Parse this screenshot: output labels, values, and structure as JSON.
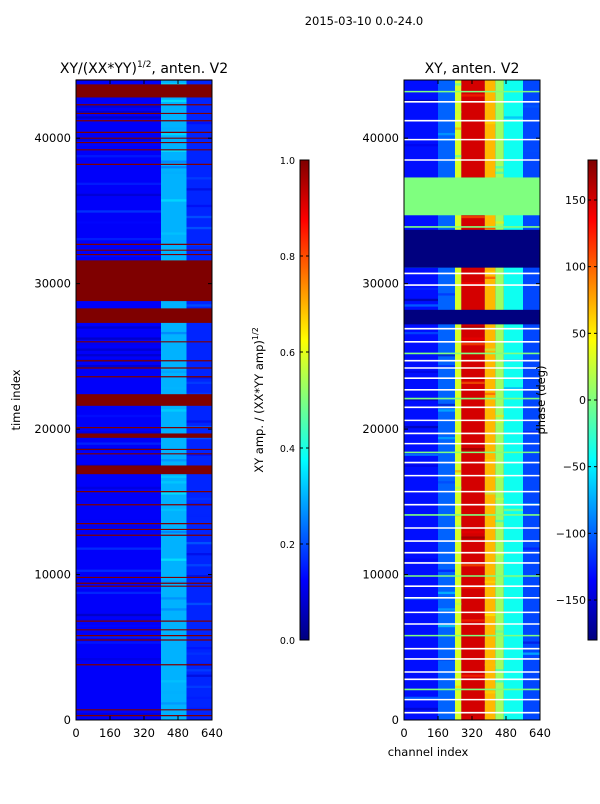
{
  "figure": {
    "suptitle": "2015-03-10 0.0-24.0"
  },
  "colors": {
    "jet": [
      "#00007f",
      "#0000ff",
      "#007fff",
      "#00ffff",
      "#7fff7f",
      "#ffff00",
      "#ff7f00",
      "#ff0000",
      "#7f0000"
    ],
    "saturated": "#7f0000",
    "gap_phase": "#7fff7f",
    "gap_line": "#ffffff"
  },
  "chart_data": [
    {
      "type": "heatmap",
      "id": "amp",
      "title": "XY/(XX*YY)",
      "title_sup": "1/2",
      "title_suffix": ", anten. V2",
      "xlabel": "",
      "ylabel": "time index",
      "xlim": [
        0,
        640
      ],
      "ylim": [
        0,
        44000
      ],
      "xticks": [
        0,
        160,
        320,
        480,
        640
      ],
      "xtick_labels": [
        "0",
        "160",
        "320",
        "480",
        "640"
      ],
      "yticks": [
        0,
        10000,
        20000,
        30000,
        40000
      ],
      "ytick_labels": [
        "0",
        "10000",
        "20000",
        "30000",
        "40000"
      ],
      "colorbar": {
        "label": "XY amp. / (XX*YY amp)",
        "label_sup": "1/2",
        "range": [
          0.0,
          1.0
        ],
        "ticks": [
          0.0,
          0.2,
          0.4,
          0.6,
          0.8,
          1.0
        ],
        "tick_labels": [
          "0.0",
          "0.2",
          "0.4",
          "0.6",
          "0.8",
          "1.0"
        ]
      },
      "channel_profile": [
        {
          "from": 0,
          "to": 400,
          "value": 0.12
        },
        {
          "from": 400,
          "to": 520,
          "value": 0.3
        },
        {
          "from": 520,
          "to": 640,
          "value": 0.16
        }
      ],
      "saturated_bands": [
        {
          "from": 42800,
          "to": 43700
        },
        {
          "from": 28800,
          "to": 31600
        },
        {
          "from": 27300,
          "to": 28300
        },
        {
          "from": 21600,
          "to": 22400
        },
        {
          "from": 16900,
          "to": 17500
        },
        {
          "from": 19400,
          "to": 19700
        }
      ],
      "saturated_lines": [
        44000,
        42300,
        41700,
        41200,
        40400,
        40000,
        39700,
        39200,
        38200,
        32700,
        32300,
        32000,
        26000,
        24700,
        24200,
        23600,
        20100,
        18600,
        18300,
        15700,
        14800,
        13500,
        13100,
        12700,
        9800,
        9400,
        9200,
        6800,
        6200,
        5800,
        5500,
        3800,
        700,
        300
      ]
    },
    {
      "type": "heatmap",
      "id": "phase",
      "title": "XY, anten. V2",
      "xlabel": "channel index",
      "ylabel": "",
      "xlim": [
        0,
        640
      ],
      "ylim": [
        0,
        44000
      ],
      "xticks": [
        0,
        160,
        320,
        480,
        640
      ],
      "xtick_labels": [
        "0",
        "160",
        "320",
        "480",
        "640"
      ],
      "yticks": [
        0,
        10000,
        20000,
        30000,
        40000
      ],
      "ytick_labels": [
        "0",
        "10000",
        "20000",
        "30000",
        "40000"
      ],
      "colorbar": {
        "label": "phase (deg)",
        "range": [
          -180,
          180
        ],
        "ticks": [
          -150,
          -100,
          -50,
          0,
          50,
          100,
          150
        ],
        "tick_labels": [
          "−150",
          "−100",
          "−50",
          "0",
          "50",
          "100",
          "150"
        ]
      },
      "channel_profile": [
        {
          "from": 0,
          "to": 160,
          "value": -130
        },
        {
          "from": 160,
          "to": 240,
          "value": -100
        },
        {
          "from": 240,
          "to": 270,
          "value": 30
        },
        {
          "from": 270,
          "to": 380,
          "value": 150
        },
        {
          "from": 380,
          "to": 430,
          "value": 70
        },
        {
          "from": 430,
          "to": 470,
          "value": 10
        },
        {
          "from": 470,
          "to": 560,
          "value": -40
        },
        {
          "from": 560,
          "to": 640,
          "value": -110
        }
      ],
      "gap_bands": [
        {
          "from": 34700,
          "to": 37300
        }
      ],
      "masked_bands": [
        {
          "from": 31100,
          "to": 33700
        },
        {
          "from": 27200,
          "to": 28200
        }
      ],
      "gap_lines": [
        43200,
        42500,
        41200,
        39900,
        38500,
        33900,
        30700,
        29900,
        26900,
        26000,
        25200,
        24700,
        24200,
        23500,
        22700,
        22100,
        21500,
        20600,
        19700,
        19000,
        18400,
        17700,
        16800,
        15700,
        14800,
        14100,
        13200,
        12300,
        11500,
        10800,
        9900,
        9200,
        8400,
        7400,
        6600,
        5800,
        4900,
        4200,
        3300,
        2800,
        2100,
        1400,
        500
      ]
    }
  ]
}
